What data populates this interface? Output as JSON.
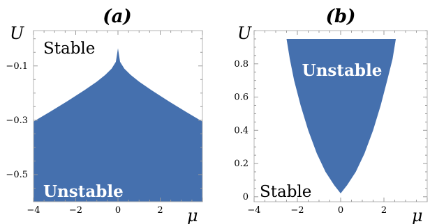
{
  "chart_data": [
    {
      "type": "area",
      "panel_label": "(a)",
      "xlabel": "μ",
      "ylabel": "U",
      "xlim": [
        -4,
        4
      ],
      "ylim": [
        -0.6,
        0.03
      ],
      "xticks": [
        -4,
        -2,
        0,
        2
      ],
      "xtick_labels": [
        "−4",
        "−2",
        "0",
        "2"
      ],
      "yticks": [
        -0.1,
        -0.3,
        -0.5
      ],
      "ytick_labels": [
        "−0.1",
        "−0.3",
        "−0.5"
      ],
      "fill_color": "#4570ae",
      "regions": [
        {
          "label": "Stable",
          "location": "top-left"
        },
        {
          "label": "Unstable",
          "location": "bottom-left"
        }
      ],
      "boundary": {
        "x": [
          -4,
          -3.2,
          -2.4,
          -1.6,
          -1.0,
          -0.6,
          -0.3,
          -0.1,
          0,
          0.1,
          0.3,
          0.6,
          1.0,
          1.6,
          2.4,
          3.2,
          4
        ],
        "y": [
          -0.305,
          -0.268,
          -0.23,
          -0.19,
          -0.158,
          -0.133,
          -0.11,
          -0.085,
          -0.035,
          -0.085,
          -0.11,
          -0.133,
          -0.158,
          -0.19,
          -0.23,
          -0.268,
          -0.305
        ]
      }
    },
    {
      "type": "area",
      "panel_label": "(b)",
      "xlabel": "μ",
      "ylabel": "U",
      "xlim": [
        -4,
        4
      ],
      "ylim": [
        -0.03,
        1.0
      ],
      "xticks": [
        -4,
        -2,
        0,
        2
      ],
      "xtick_labels": [
        "−4",
        "−2",
        "0",
        "2"
      ],
      "yticks": [
        0,
        0.2,
        0.4,
        0.6,
        0.8
      ],
      "ytick_labels": [
        "0",
        "0.2",
        "0.4",
        "0.6",
        "0.8"
      ],
      "fill_color": "#4570ae",
      "regions": [
        {
          "label": "Unstable",
          "location": "top-center"
        },
        {
          "label": "Stable",
          "location": "bottom-left"
        }
      ],
      "boundary_left": {
        "x": [
          0,
          -0.3,
          -0.7,
          -1.1,
          -1.5,
          -1.85,
          -2.15,
          -2.35,
          -2.5
        ],
        "y": [
          0.02,
          0.07,
          0.15,
          0.26,
          0.4,
          0.55,
          0.7,
          0.83,
          0.95
        ]
      },
      "boundary_right": {
        "x": [
          0,
          0.3,
          0.7,
          1.1,
          1.5,
          1.85,
          2.15,
          2.4,
          2.55
        ],
        "y": [
          0.02,
          0.07,
          0.15,
          0.26,
          0.4,
          0.55,
          0.7,
          0.83,
          0.95
        ]
      }
    }
  ]
}
